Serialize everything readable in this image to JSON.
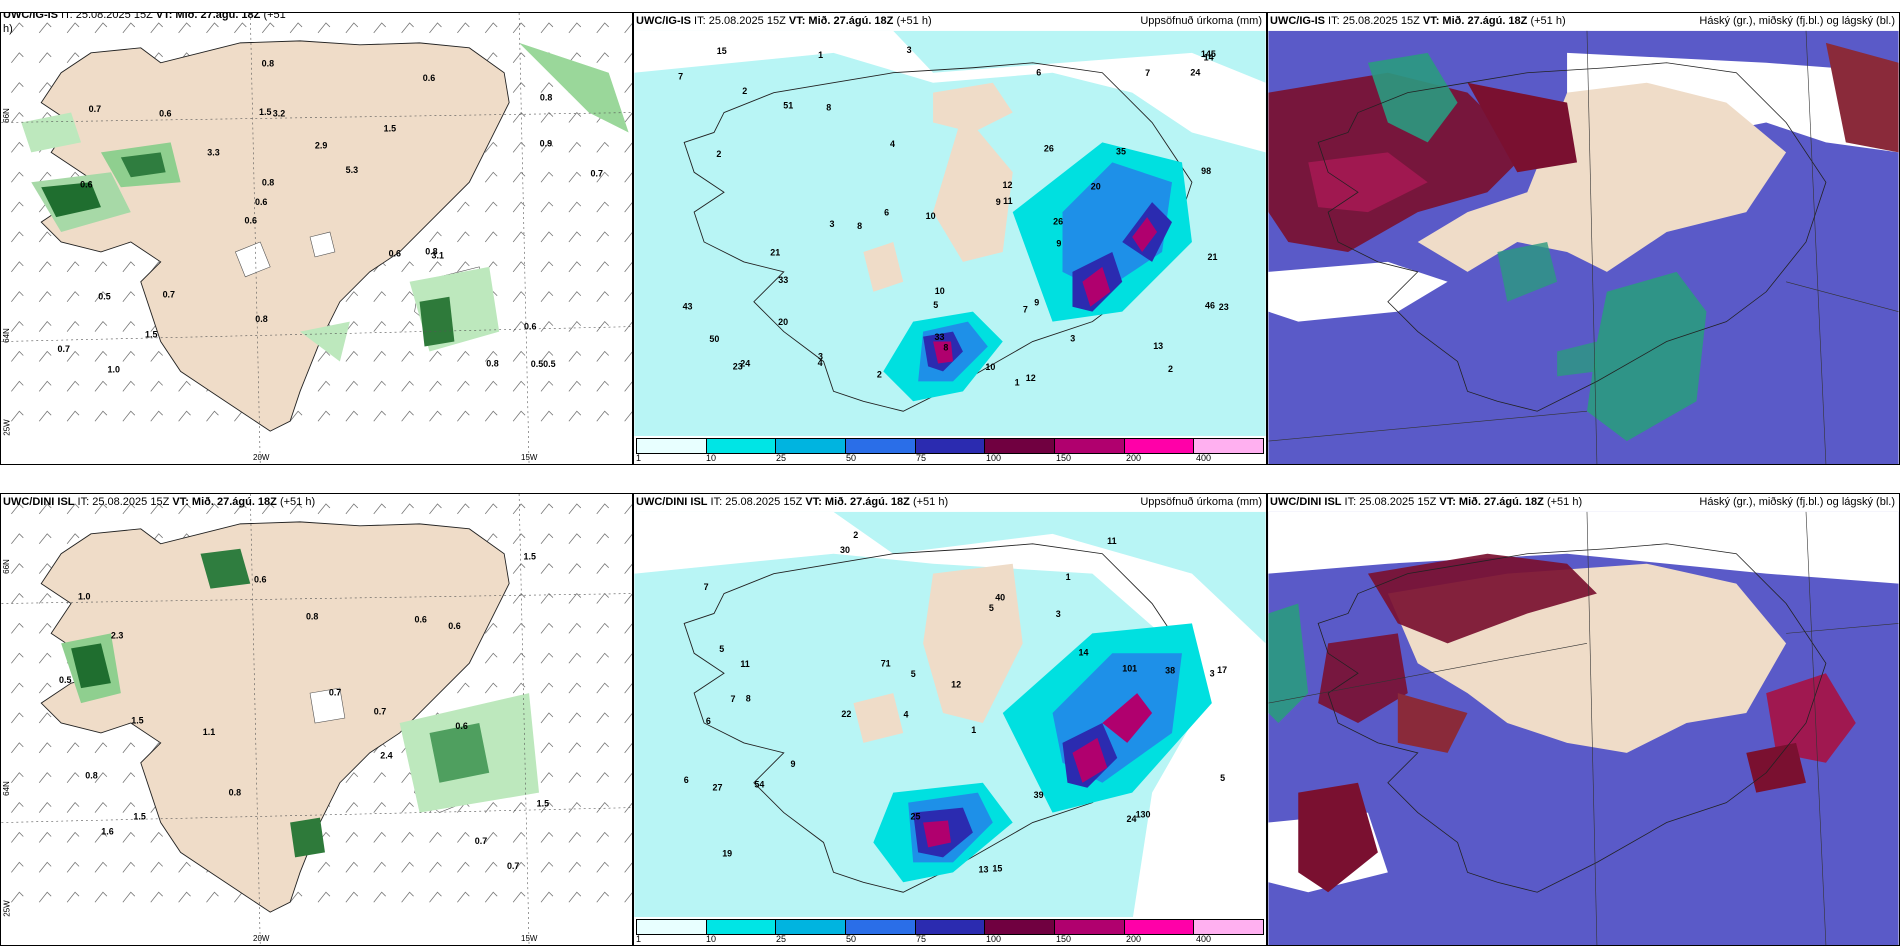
{
  "panels": {
    "top_left": {
      "title_bold": "UWC/IG-IS",
      "title_rest": " IT: 25.08.2025 15Z ",
      "vt_bold": "VT: Mið. 27.ágú. 18Z",
      "lead": " (+51",
      "lead2": "h)"
    },
    "top_mid": {
      "title_bold": "UWC/IG-IS",
      "title_rest": " IT: 25.08.2025 15Z ",
      "vt_bold": "VT: Mið. 27.ágú. 18Z",
      "lead": " (+51 h)",
      "right": "Uppsöfnuð úrkoma (mm)"
    },
    "top_right": {
      "title_bold": "UWC/IG-IS",
      "title_rest": " IT: 25.08.2025 15Z ",
      "vt_bold": "VT: Mið. 27.ágú. 18Z",
      "lead": " (+51 h)",
      "right": "Háský (gr.), miðský (fj.bl.) og lágský (bl.)"
    },
    "bot_left": {
      "title_bold": "UWC/DINI ISL",
      "title_rest": " IT: 25.08.2025 15Z ",
      "vt_bold": "VT: Mið. 27.ágú. 18Z",
      "lead": " (+51 h)"
    },
    "bot_mid": {
      "title_bold": "UWC/DINI ISL",
      "title_rest": " IT: 25.08.2025 15Z ",
      "vt_bold": "VT: Mið. 27.ágú. 18Z",
      "lead": " (+51 h)",
      "right": "Uppsöfnuð úrkoma (mm)"
    },
    "bot_right": {
      "title_bold": "UWC/DINI ISL",
      "title_rest": " IT: 25.08.2025 15Z ",
      "vt_bold": "VT: Mið. 27.ágú. 18Z",
      "lead": " (+51 h)",
      "right": "Háský (gr.), miðský (fj.bl.) og lágský (bl.)"
    }
  },
  "axis_labels": {
    "lon_20w": "20W",
    "lon_15w": "15W",
    "lat_66n": "66N",
    "lat_64n": "64N",
    "lon_25w": "25W"
  },
  "legend": {
    "ticks": [
      "1",
      "10",
      "25",
      "50",
      "75",
      "100",
      "150",
      "200",
      "400"
    ],
    "colors": [
      "#e8ffff",
      "#00e5e5",
      "#00b4e0",
      "#2a6ee8",
      "#2b2bb0",
      "#700040",
      "#b0006e",
      "#ff00a8",
      "#ffb0f0"
    ]
  },
  "colors": {
    "land": "#efdcc8",
    "precip_light": "#b8f5f5",
    "precip_mid": "#00e0e0",
    "precip_blue": "#1e90e8",
    "precip_magenta": "#b0006e",
    "green_light": "#bde8bd",
    "green_dark": "#1f6e2f",
    "cloud_low": "#5a5ac8",
    "cloud_mid": "#7a1030",
    "cloud_high": "#2a9a80"
  },
  "labels": {
    "tl": [
      "0.50.5",
      "0.6",
      "0.8",
      "0.6",
      "1.5",
      "1.0",
      "1.5",
      "2.9",
      "0.5",
      "3.3",
      "0.7",
      "1.5",
      "3.2",
      "5.3",
      "3.1",
      "0.7",
      "0.8",
      "0.7",
      "0.6",
      "0.9",
      "0.6",
      "0.8",
      "0.8",
      "0.6",
      "0.6",
      "0.7",
      "0.8",
      "0.6",
      "0.8"
    ],
    "tm": [
      "2",
      "1",
      "3",
      "3",
      "1",
      "2",
      "3",
      "2",
      "3",
      "4",
      "7",
      "8",
      "6",
      "5",
      "6",
      "9",
      "2",
      "4",
      "8",
      "7",
      "7",
      "14",
      "12",
      "23",
      "35",
      "21",
      "43",
      "33",
      "15",
      "9",
      "10",
      "12",
      "10",
      "24",
      "20",
      "26",
      "46",
      "50",
      "26",
      "13",
      "11",
      "20",
      "23",
      "24",
      "8",
      "9",
      "21",
      "10",
      "51",
      "33",
      "145",
      "98"
    ],
    "bl": [
      "0.7",
      "1.5",
      "2.4",
      "1.0",
      "1.5",
      "2.3",
      "1.5",
      "1.1",
      "0.6",
      "0.8",
      "0.6",
      "0.7",
      "0.8",
      "0.6",
      "0.7",
      "0.8",
      "0.6",
      "0.7",
      "0.5",
      "1.6",
      "1.5"
    ],
    "bm": [
      "2",
      "1",
      "3",
      "4",
      "1",
      "8",
      "7",
      "3",
      "6",
      "5",
      "12",
      "19",
      "30",
      "22",
      "13",
      "15",
      "25",
      "11",
      "14",
      "9",
      "11",
      "7",
      "17",
      "38",
      "6",
      "5",
      "5",
      "101",
      "130",
      "27",
      "24",
      "40",
      "54",
      "71",
      "39",
      "5"
    ]
  }
}
